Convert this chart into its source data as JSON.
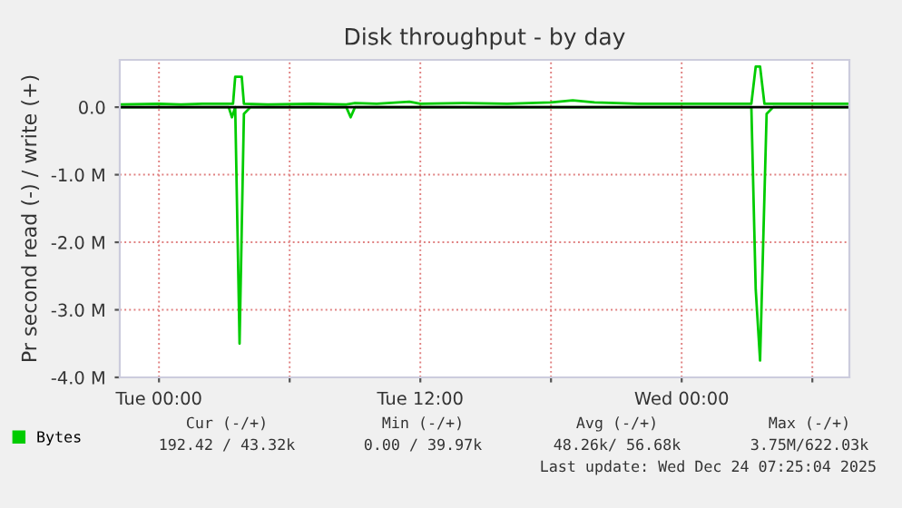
{
  "chart_data": {
    "type": "line",
    "title": "Disk throughput - by day",
    "ylabel": "Pr second read (-) / write (+)",
    "xlim": [
      "2025-12-22T22:12",
      "2025-12-24T07:42"
    ],
    "ylim": [
      -4.0,
      0.7
    ],
    "xticks": [
      {
        "value": "2025-12-23T00:00",
        "label": "Tue 00:00"
      },
      {
        "value": "2025-12-23T06:00",
        "label": null
      },
      {
        "value": "2025-12-23T12:00",
        "label": "Tue 12:00"
      },
      {
        "value": "2025-12-23T18:00",
        "label": null
      },
      {
        "value": "2025-12-24T00:00",
        "label": "Wed 00:00"
      },
      {
        "value": "2025-12-24T06:00",
        "label": null
      }
    ],
    "yticks": [
      {
        "value": -4,
        "label": "-4.0 M"
      },
      {
        "value": -3,
        "label": "-3.0 M"
      },
      {
        "value": -2,
        "label": "-2.0 M"
      },
      {
        "value": -1,
        "label": "-1.0 M"
      },
      {
        "value": 0,
        "label": "0.0"
      }
    ],
    "grid": true,
    "legend": "bottom left",
    "line_style": "solid",
    "marker": "none",
    "ref_lines": [
      {
        "axis": "y",
        "value": 0,
        "color": "#000000"
      }
    ],
    "series": [
      {
        "name": "Bytes",
        "color": "#00cc00",
        "x": [
          "2025-12-22T22:12",
          "2025-12-23T00:00",
          "2025-12-23T01:00",
          "2025-12-23T02:00",
          "2025-12-23T03:00",
          "2025-12-23T03:24",
          "2025-12-23T03:30",
          "2025-12-23T03:48",
          "2025-12-23T03:54",
          "2025-12-23T05:00",
          "2025-12-23T07:00",
          "2025-12-23T08:36",
          "2025-12-23T09:00",
          "2025-12-23T10:00",
          "2025-12-23T11:30",
          "2025-12-23T12:00",
          "2025-12-23T14:00",
          "2025-12-23T16:00",
          "2025-12-23T18:00",
          "2025-12-23T19:00",
          "2025-12-23T20:00",
          "2025-12-23T22:00",
          "2025-12-24T00:00",
          "2025-12-24T02:00",
          "2025-12-24T03:12",
          "2025-12-24T03:24",
          "2025-12-24T03:36",
          "2025-12-24T03:48",
          "2025-12-24T05:00",
          "2025-12-24T07:42"
        ],
        "values": [
          0.04,
          0.05,
          0.04,
          0.05,
          0.05,
          0.05,
          0.45,
          0.45,
          0.05,
          0.04,
          0.05,
          0.04,
          0.06,
          0.05,
          0.08,
          0.05,
          0.06,
          0.05,
          0.07,
          0.1,
          0.07,
          0.05,
          0.05,
          0.05,
          0.05,
          0.6,
          0.6,
          0.05,
          0.05,
          0.05
        ]
      },
      {
        "color": "#00cc00",
        "x": [
          "2025-12-22T22:12",
          "2025-12-23T03:12",
          "2025-12-23T03:21",
          "2025-12-23T03:30",
          "2025-12-23T03:42",
          "2025-12-23T03:54",
          "2025-12-23T04:12",
          "2025-12-23T08:36",
          "2025-12-23T08:48",
          "2025-12-23T09:00",
          "2025-12-24T03:12",
          "2025-12-24T03:24",
          "2025-12-24T03:36",
          "2025-12-24T03:54",
          "2025-12-24T04:12",
          "2025-12-24T07:42"
        ],
        "values": [
          0,
          0,
          -0.15,
          0,
          -3.5,
          -0.1,
          0,
          0,
          -0.15,
          0,
          0,
          -2.7,
          -3.75,
          -0.1,
          0,
          0
        ]
      }
    ],
    "annotations": [
      "Cur (-/+)",
      "Min (-/+)",
      "Avg (-/+)",
      "Max (-/+)",
      "192.42 / 43.32k",
      "0.00 / 39.97k",
      "48.26k/ 56.68k",
      "3.75M/622.03k",
      "Last update: Wed Dec 24 07:25:04 2025"
    ]
  }
}
